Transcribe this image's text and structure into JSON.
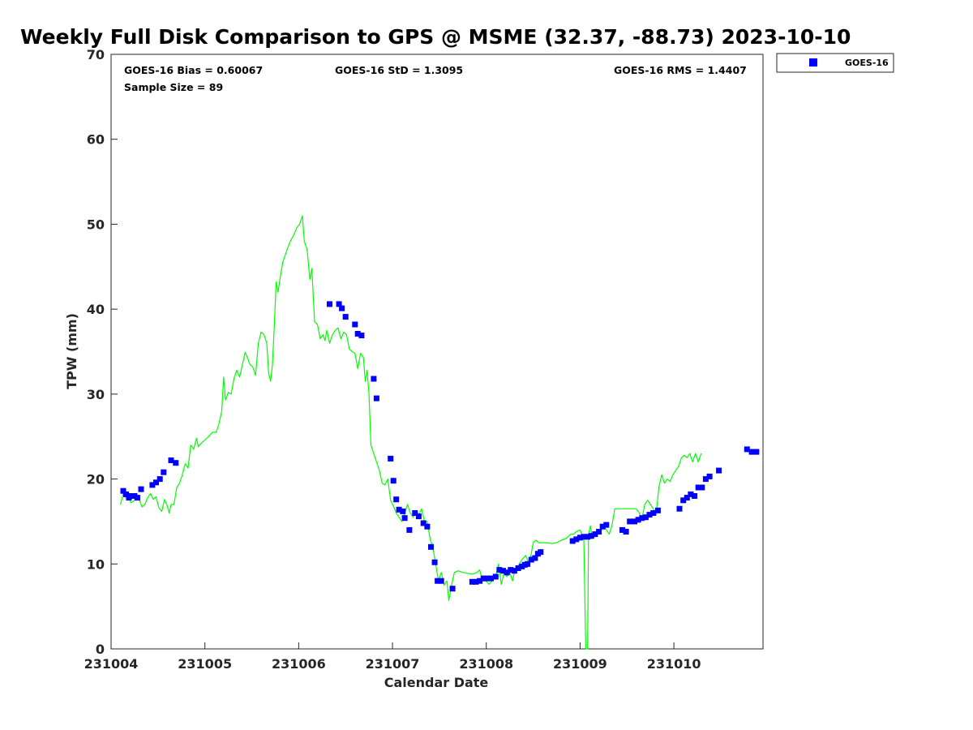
{
  "chart_data": {
    "type": "scatter",
    "title": "Weekly Full Disk Comparison to GPS @ MSME (32.37, -88.73) 2023-10-10",
    "xlabel": "Calendar Date",
    "ylabel": "TPW (mm)",
    "xlim": [
      0,
      6.95
    ],
    "ylim": [
      0,
      70
    ],
    "x_ticks": [
      {
        "value": 0,
        "label": "231004"
      },
      {
        "value": 1,
        "label": "231005"
      },
      {
        "value": 2,
        "label": "231006"
      },
      {
        "value": 3,
        "label": "231007"
      },
      {
        "value": 4,
        "label": "231008"
      },
      {
        "value": 5,
        "label": "231009"
      },
      {
        "value": 6,
        "label": "231010"
      }
    ],
    "y_ticks": [
      {
        "value": 0,
        "label": "0"
      },
      {
        "value": 10,
        "label": "10"
      },
      {
        "value": 20,
        "label": "20"
      },
      {
        "value": 30,
        "label": "30"
      },
      {
        "value": 40,
        "label": "40"
      },
      {
        "value": 50,
        "label": "50"
      },
      {
        "value": 60,
        "label": "60"
      },
      {
        "value": 70,
        "label": "70"
      }
    ],
    "stats": {
      "bias": "GOES-16 Bias = 0.60067",
      "std": "GOES-16 StD = 1.3095",
      "rms": "GOES-16 RMS = 1.4407",
      "sample_size": "Sample Size = 89"
    },
    "legend": {
      "placement": "top-right, outside",
      "entries": [
        "GOES-16"
      ]
    },
    "series": [
      {
        "name": "GPS",
        "kind": "line",
        "color": "#00ff00",
        "points": [
          [
            0.1,
            17.0
          ],
          [
            0.13,
            18.3
          ],
          [
            0.16,
            17.8
          ],
          [
            0.19,
            18.2
          ],
          [
            0.21,
            17.2
          ],
          [
            0.24,
            17.4
          ],
          [
            0.27,
            17.8
          ],
          [
            0.3,
            17.6
          ],
          [
            0.33,
            16.7
          ],
          [
            0.36,
            17.0
          ],
          [
            0.39,
            17.8
          ],
          [
            0.42,
            18.3
          ],
          [
            0.45,
            17.6
          ],
          [
            0.48,
            17.9
          ],
          [
            0.51,
            16.6
          ],
          [
            0.54,
            16.2
          ],
          [
            0.57,
            17.6
          ],
          [
            0.6,
            16.8
          ],
          [
            0.62,
            16.0
          ],
          [
            0.64,
            17.0
          ],
          [
            0.67,
            17.0
          ],
          [
            0.7,
            19.0
          ],
          [
            0.73,
            19.5
          ],
          [
            0.76,
            20.5
          ],
          [
            0.79,
            21.8
          ],
          [
            0.82,
            21.3
          ],
          [
            0.85,
            24.0
          ],
          [
            0.88,
            23.5
          ],
          [
            0.91,
            24.8
          ],
          [
            0.93,
            23.8
          ],
          [
            0.96,
            24.2
          ],
          [
            1.0,
            24.6
          ],
          [
            1.04,
            25.0
          ],
          [
            1.08,
            25.5
          ],
          [
            1.12,
            25.5
          ],
          [
            1.15,
            26.5
          ],
          [
            1.18,
            28.0
          ],
          [
            1.2,
            32.0
          ],
          [
            1.22,
            29.3
          ],
          [
            1.25,
            30.2
          ],
          [
            1.28,
            30.0
          ],
          [
            1.31,
            31.8
          ],
          [
            1.34,
            32.8
          ],
          [
            1.37,
            32.0
          ],
          [
            1.4,
            33.5
          ],
          [
            1.43,
            34.9
          ],
          [
            1.46,
            34.1
          ],
          [
            1.48,
            33.5
          ],
          [
            1.51,
            33.2
          ],
          [
            1.54,
            32.2
          ],
          [
            1.57,
            36.0
          ],
          [
            1.6,
            37.3
          ],
          [
            1.63,
            37.0
          ],
          [
            1.66,
            36.0
          ],
          [
            1.68,
            32.5
          ],
          [
            1.7,
            31.5
          ],
          [
            1.72,
            33.5
          ],
          [
            1.74,
            38.0
          ],
          [
            1.76,
            43.2
          ],
          [
            1.78,
            42.0
          ],
          [
            1.8,
            43.5
          ],
          [
            1.83,
            45.5
          ],
          [
            1.87,
            46.8
          ],
          [
            1.91,
            48.0
          ],
          [
            1.95,
            48.8
          ],
          [
            1.98,
            49.6
          ],
          [
            2.01,
            50.0
          ],
          [
            2.04,
            51.0
          ],
          [
            2.06,
            48.0
          ],
          [
            2.09,
            47.0
          ],
          [
            2.12,
            43.5
          ],
          [
            2.14,
            44.8
          ],
          [
            2.17,
            38.5
          ],
          [
            2.2,
            38.2
          ],
          [
            2.23,
            36.5
          ],
          [
            2.26,
            37.0
          ],
          [
            2.28,
            36.3
          ],
          [
            2.3,
            37.5
          ],
          [
            2.33,
            36.0
          ],
          [
            2.36,
            37.0
          ],
          [
            2.39,
            37.5
          ],
          [
            2.42,
            37.8
          ],
          [
            2.45,
            36.5
          ],
          [
            2.48,
            37.3
          ],
          [
            2.51,
            37.0
          ],
          [
            2.54,
            35.3
          ],
          [
            2.57,
            35.0
          ],
          [
            2.6,
            34.8
          ],
          [
            2.63,
            33.0
          ],
          [
            2.66,
            34.8
          ],
          [
            2.69,
            34.3
          ],
          [
            2.71,
            31.5
          ],
          [
            2.73,
            32.8
          ],
          [
            2.75,
            30.0
          ],
          [
            2.77,
            24.0
          ],
          [
            2.8,
            23.0
          ],
          [
            2.83,
            22.0
          ],
          [
            2.86,
            21.0
          ],
          [
            2.89,
            19.5
          ],
          [
            2.92,
            19.3
          ],
          [
            2.95,
            20.0
          ],
          [
            2.98,
            17.5
          ],
          [
            3.01,
            16.8
          ],
          [
            3.04,
            16.0
          ],
          [
            3.07,
            15.5
          ],
          [
            3.1,
            15.0
          ],
          [
            3.13,
            16.0
          ],
          [
            3.16,
            17.0
          ],
          [
            3.19,
            16.0
          ],
          [
            3.22,
            15.5
          ],
          [
            3.25,
            16.2
          ],
          [
            3.28,
            15.8
          ],
          [
            3.31,
            16.5
          ],
          [
            3.34,
            15.0
          ],
          [
            3.37,
            15.0
          ],
          [
            3.4,
            13.0
          ],
          [
            3.43,
            12.0
          ],
          [
            3.46,
            10.0
          ],
          [
            3.49,
            8.0
          ],
          [
            3.52,
            9.0
          ],
          [
            3.55,
            7.5
          ],
          [
            3.58,
            8.0
          ],
          [
            3.6,
            5.7
          ],
          [
            3.63,
            7.5
          ],
          [
            3.66,
            9.0
          ],
          [
            3.7,
            9.2
          ],
          [
            3.75,
            9.0
          ],
          [
            3.8,
            8.9
          ],
          [
            3.85,
            8.8
          ],
          [
            3.9,
            9.0
          ],
          [
            3.93,
            9.3
          ],
          [
            3.96,
            8.0
          ],
          [
            4.0,
            8.0
          ],
          [
            4.03,
            7.6
          ],
          [
            4.06,
            8.0
          ],
          [
            4.1,
            8.5
          ],
          [
            4.13,
            10.0
          ],
          [
            4.16,
            7.6
          ],
          [
            4.19,
            9.0
          ],
          [
            4.22,
            8.5
          ],
          [
            4.25,
            9.0
          ],
          [
            4.28,
            8.0
          ],
          [
            4.31,
            9.5
          ],
          [
            4.34,
            9.8
          ],
          [
            4.38,
            10.5
          ],
          [
            4.42,
            11.0
          ],
          [
            4.46,
            10.0
          ],
          [
            4.5,
            12.5
          ],
          [
            4.53,
            12.8
          ],
          [
            4.56,
            12.5
          ],
          [
            4.6,
            12.5
          ],
          [
            4.65,
            12.5
          ],
          [
            4.7,
            12.4
          ],
          [
            4.75,
            12.5
          ],
          [
            4.8,
            12.8
          ],
          [
            4.85,
            13.0
          ],
          [
            4.9,
            13.5
          ],
          [
            4.93,
            13.5
          ],
          [
            4.96,
            13.8
          ],
          [
            5.0,
            14.0
          ],
          [
            5.02,
            13.5
          ],
          [
            5.04,
            13.0
          ],
          [
            5.06,
            0.0
          ],
          [
            5.08,
            0.0
          ],
          [
            5.09,
            13.5
          ],
          [
            5.11,
            14.5
          ],
          [
            5.13,
            13.0
          ],
          [
            5.16,
            13.5
          ],
          [
            5.19,
            14.0
          ],
          [
            5.22,
            13.8
          ],
          [
            5.25,
            14.5
          ],
          [
            5.28,
            14.0
          ],
          [
            5.31,
            13.5
          ],
          [
            5.34,
            14.5
          ],
          [
            5.37,
            16.5
          ],
          [
            5.4,
            16.5
          ],
          [
            5.45,
            16.5
          ],
          [
            5.5,
            16.5
          ],
          [
            5.55,
            16.5
          ],
          [
            5.6,
            16.5
          ],
          [
            5.63,
            16.0
          ],
          [
            5.66,
            15.4
          ],
          [
            5.69,
            17.0
          ],
          [
            5.72,
            17.5
          ],
          [
            5.75,
            17.0
          ],
          [
            5.78,
            16.5
          ],
          [
            5.81,
            15.8
          ],
          [
            5.84,
            19.0
          ],
          [
            5.87,
            20.5
          ],
          [
            5.9,
            19.5
          ],
          [
            5.93,
            20.0
          ],
          [
            5.96,
            19.7
          ],
          [
            5.99,
            20.5
          ],
          [
            6.02,
            21.0
          ],
          [
            6.05,
            21.5
          ],
          [
            6.08,
            22.5
          ],
          [
            6.11,
            22.8
          ],
          [
            6.14,
            22.5
          ],
          [
            6.17,
            23.0
          ],
          [
            6.2,
            22.0
          ],
          [
            6.23,
            23.0
          ],
          [
            6.26,
            22.0
          ],
          [
            6.29,
            23.0
          ]
        ]
      },
      {
        "name": "GOES-16",
        "kind": "scatter",
        "color": "#0000ff",
        "points": [
          [
            0.13,
            18.6
          ],
          [
            0.16,
            18.2
          ],
          [
            0.19,
            17.8
          ],
          [
            0.22,
            18.0
          ],
          [
            0.25,
            18.0
          ],
          [
            0.28,
            17.8
          ],
          [
            0.32,
            18.8
          ],
          [
            0.44,
            19.3
          ],
          [
            0.48,
            19.6
          ],
          [
            0.52,
            20.0
          ],
          [
            0.56,
            20.8
          ],
          [
            0.64,
            22.2
          ],
          [
            0.69,
            21.9
          ],
          [
            2.33,
            40.6
          ],
          [
            2.43,
            40.6
          ],
          [
            2.46,
            40.1
          ],
          [
            2.5,
            39.1
          ],
          [
            2.6,
            38.2
          ],
          [
            2.63,
            37.1
          ],
          [
            2.67,
            36.9
          ],
          [
            2.8,
            31.8
          ],
          [
            2.83,
            29.5
          ],
          [
            2.98,
            22.4
          ],
          [
            3.01,
            19.8
          ],
          [
            3.04,
            17.6
          ],
          [
            3.07,
            16.4
          ],
          [
            3.11,
            16.2
          ],
          [
            3.13,
            15.4
          ],
          [
            3.18,
            14.0
          ],
          [
            3.24,
            16.0
          ],
          [
            3.28,
            15.6
          ],
          [
            3.33,
            14.8
          ],
          [
            3.37,
            14.4
          ],
          [
            3.41,
            12.0
          ],
          [
            3.45,
            10.2
          ],
          [
            3.48,
            8.0
          ],
          [
            3.52,
            8.0
          ],
          [
            3.64,
            7.1
          ],
          [
            3.85,
            7.9
          ],
          [
            3.89,
            7.9
          ],
          [
            3.93,
            8.0
          ],
          [
            3.97,
            8.3
          ],
          [
            4.01,
            8.3
          ],
          [
            4.05,
            8.3
          ],
          [
            4.1,
            8.5
          ],
          [
            4.14,
            9.3
          ],
          [
            4.18,
            9.2
          ],
          [
            4.22,
            9.0
          ],
          [
            4.26,
            9.3
          ],
          [
            4.3,
            9.2
          ],
          [
            4.34,
            9.5
          ],
          [
            4.38,
            9.7
          ],
          [
            4.41,
            9.9
          ],
          [
            4.44,
            10.0
          ],
          [
            4.48,
            10.5
          ],
          [
            4.52,
            10.7
          ],
          [
            4.55,
            11.2
          ],
          [
            4.58,
            11.4
          ],
          [
            4.92,
            12.7
          ],
          [
            4.96,
            12.9
          ],
          [
            5.0,
            13.1
          ],
          [
            5.04,
            13.2
          ],
          [
            5.08,
            13.2
          ],
          [
            5.12,
            13.3
          ],
          [
            5.16,
            13.5
          ],
          [
            5.2,
            13.8
          ],
          [
            5.24,
            14.4
          ],
          [
            5.28,
            14.6
          ],
          [
            5.45,
            14.0
          ],
          [
            5.49,
            13.8
          ],
          [
            5.53,
            15.0
          ],
          [
            5.58,
            15.0
          ],
          [
            5.62,
            15.2
          ],
          [
            5.66,
            15.4
          ],
          [
            5.7,
            15.5
          ],
          [
            5.74,
            15.8
          ],
          [
            5.78,
            16.0
          ],
          [
            5.83,
            16.3
          ],
          [
            6.06,
            16.5
          ],
          [
            6.1,
            17.5
          ],
          [
            6.14,
            17.8
          ],
          [
            6.18,
            18.2
          ],
          [
            6.22,
            18.0
          ],
          [
            6.26,
            19.0
          ],
          [
            6.3,
            19.0
          ],
          [
            6.34,
            20.0
          ],
          [
            6.38,
            20.3
          ],
          [
            6.48,
            21.0
          ],
          [
            6.78,
            23.5
          ],
          [
            6.83,
            23.2
          ],
          [
            6.88,
            23.2
          ]
        ]
      }
    ]
  }
}
